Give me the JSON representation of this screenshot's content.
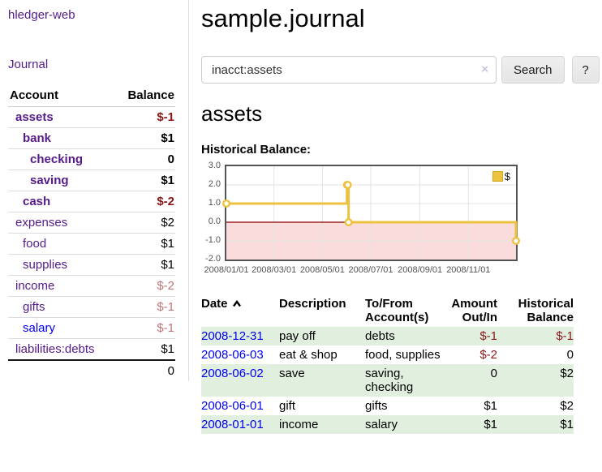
{
  "colors": {
    "link_purple": "#551a8b",
    "link_blue": "#0000ee",
    "negative_bold": "#8b1515",
    "negative_light": "#bd7476",
    "row_stripe_green": "#e1efdf",
    "chart_series_yellow": "#edc240",
    "chart_negative_fill": "#fbdcdc",
    "chart_zero_line": "#8b0000"
  },
  "sidebar": {
    "brand": "hledger-web",
    "journal_link": "Journal",
    "accounts_table": {
      "headers": {
        "account": "Account",
        "balance": "Balance"
      },
      "rows": [
        {
          "account": "assets",
          "balance": "$-1",
          "depth": 0,
          "bold": true,
          "negative": true,
          "link_color": "purple"
        },
        {
          "account": "bank",
          "balance": "$1",
          "depth": 1,
          "bold": true,
          "negative": false,
          "link_color": "purple"
        },
        {
          "account": "checking",
          "balance": "0",
          "depth": 2,
          "bold": true,
          "negative": false,
          "link_color": "purple"
        },
        {
          "account": "saving",
          "balance": "$1",
          "depth": 2,
          "bold": true,
          "negative": false,
          "link_color": "purple"
        },
        {
          "account": "cash",
          "balance": "$-2",
          "depth": 1,
          "bold": true,
          "negative": true,
          "link_color": "purple"
        },
        {
          "account": "expenses",
          "balance": "$2",
          "depth": 0,
          "bold": false,
          "negative": false,
          "link_color": "purple"
        },
        {
          "account": "food",
          "balance": "$1",
          "depth": 1,
          "bold": false,
          "negative": false,
          "link_color": "purple"
        },
        {
          "account": "supplies",
          "balance": "$1",
          "depth": 1,
          "bold": false,
          "negative": false,
          "link_color": "purple"
        },
        {
          "account": "income",
          "balance": "$-2",
          "depth": 0,
          "bold": false,
          "negative": true,
          "link_color": "purple"
        },
        {
          "account": "gifts",
          "balance": "$-1",
          "depth": 1,
          "bold": false,
          "negative": true,
          "link_color": "purple"
        },
        {
          "account": "salary",
          "balance": "$-1",
          "depth": 1,
          "bold": false,
          "negative": true,
          "link_color": "blue"
        },
        {
          "account": "liabilities:debts",
          "balance": "$1",
          "depth": 0,
          "bold": false,
          "negative": false,
          "link_color": "purple"
        }
      ],
      "total": "0"
    }
  },
  "header": {
    "title": "sample.journal"
  },
  "search": {
    "query": "inacct:assets",
    "clear_label": "×",
    "clear_icon_name": "clear-x-icon",
    "search_button": "Search",
    "help_button": "?"
  },
  "account_page": {
    "title": "assets",
    "chart_heading": "Historical Balance:"
  },
  "chart_data": {
    "type": "line",
    "step": true,
    "title": "Historical Balance:",
    "xrange": [
      "2008-01-01",
      "2008-12-31"
    ],
    "ylim": [
      -2.0,
      3.0
    ],
    "yticks": [
      3.0,
      2.0,
      1.0,
      0.0,
      -1.0,
      -2.0
    ],
    "xticks": [
      "2008/01/01",
      "2008/03/01",
      "2008/05/01",
      "2008/07/01",
      "2008/09/01",
      "2008/11/01"
    ],
    "grid": true,
    "series": [
      {
        "name": "$",
        "color": "#edc240",
        "points": [
          [
            "2008-01-01",
            1.0
          ],
          [
            "2008-06-01",
            2.0
          ],
          [
            "2008-06-02",
            2.0
          ],
          [
            "2008-06-03",
            0.0
          ],
          [
            "2008-12-31",
            -1.0
          ]
        ]
      }
    ],
    "negative_region_color": "#fbdcdc",
    "zero_line_color": "#8b0000",
    "legend": {
      "label": "$",
      "position": "top-right"
    }
  },
  "register": {
    "headers": [
      {
        "label": "Date",
        "sort_icon": "chevron-up-icon",
        "align": "left"
      },
      {
        "label": "Description",
        "align": "left"
      },
      {
        "label": "To/From Account(s)",
        "align": "left"
      },
      {
        "label": "Amount Out/In",
        "align": "right"
      },
      {
        "label": "Historical Balance",
        "align": "right"
      }
    ],
    "rows": [
      {
        "date": "2008-12-31",
        "description": "pay off",
        "accounts": "debts",
        "amount": "$-1",
        "balance": "$-1",
        "amount_negative": true,
        "balance_negative": true,
        "striped": true
      },
      {
        "date": "2008-06-03",
        "description": "eat & shop",
        "accounts": "food, supplies",
        "amount": "$-2",
        "balance": "0",
        "amount_negative": true,
        "balance_negative": false,
        "striped": false
      },
      {
        "date": "2008-06-02",
        "description": "save",
        "accounts": "saving, checking",
        "amount": "0",
        "balance": "$2",
        "amount_negative": false,
        "balance_negative": false,
        "striped": true
      },
      {
        "date": "2008-06-01",
        "description": "gift",
        "accounts": "gifts",
        "amount": "$1",
        "balance": "$2",
        "amount_negative": false,
        "balance_negative": false,
        "striped": false
      },
      {
        "date": "2008-01-01",
        "description": "income",
        "accounts": "salary",
        "amount": "$1",
        "balance": "$1",
        "amount_negative": false,
        "balance_negative": false,
        "striped": true
      }
    ]
  }
}
